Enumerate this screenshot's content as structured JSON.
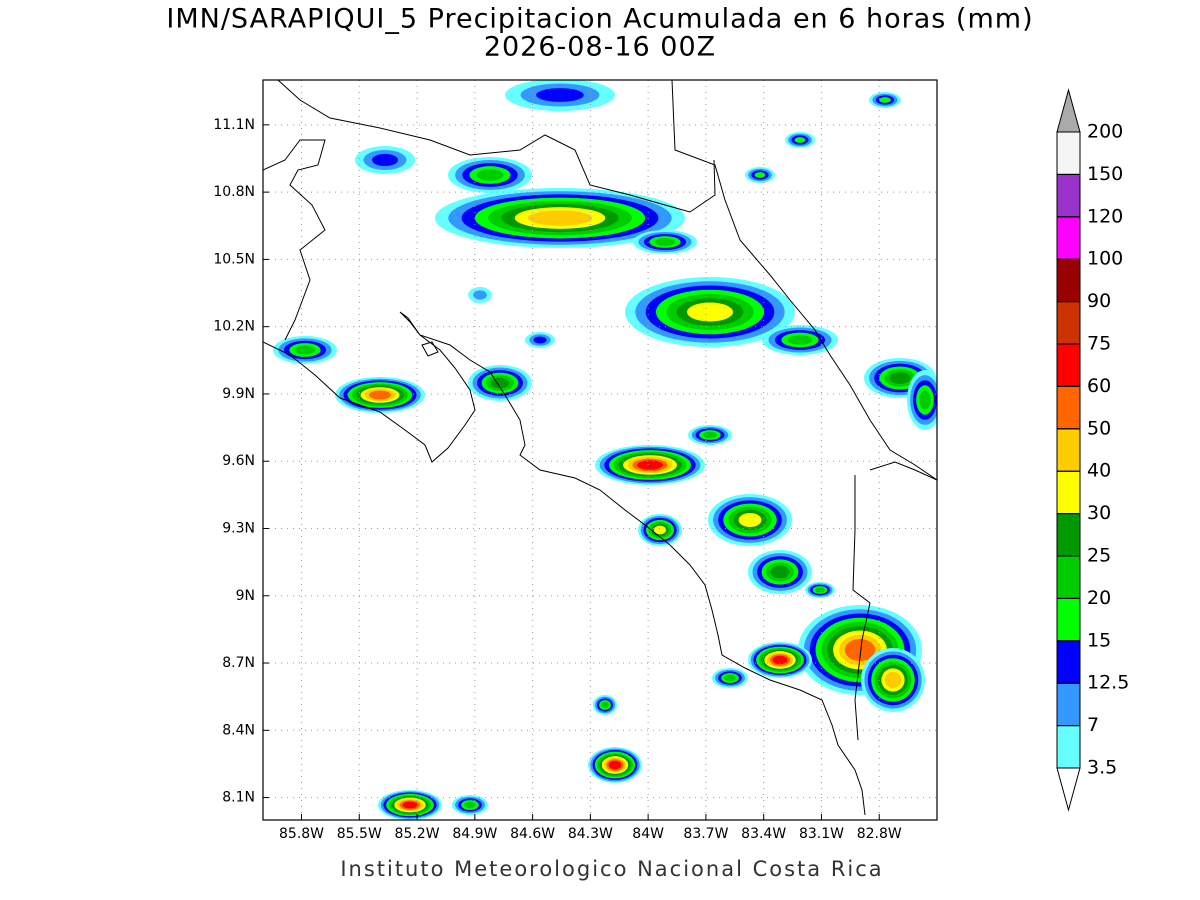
{
  "header": {
    "title": "IMN/SARAPIQUI_5 Precipitacion Acumulada en 6 horas (mm)",
    "subtitle": "2026-08-16 00Z"
  },
  "map": {
    "xlim": [
      -86.0,
      -82.5
    ],
    "ylim": [
      8.0,
      11.3
    ],
    "grid": true,
    "xticks": [
      {
        "value": -85.8,
        "label": "85.8W"
      },
      {
        "value": -85.5,
        "label": "85.5W"
      },
      {
        "value": -85.2,
        "label": "85.2W"
      },
      {
        "value": -84.9,
        "label": "84.9W"
      },
      {
        "value": -84.6,
        "label": "84.6W"
      },
      {
        "value": -84.3,
        "label": "84.3W"
      },
      {
        "value": -84.0,
        "label": "84W"
      },
      {
        "value": -83.7,
        "label": "83.7W"
      },
      {
        "value": -83.4,
        "label": "83.4W"
      },
      {
        "value": -83.1,
        "label": "83.1W"
      },
      {
        "value": -82.8,
        "label": "82.8W"
      }
    ],
    "yticks": [
      {
        "value": 8.1,
        "label": "8.1N"
      },
      {
        "value": 8.4,
        "label": "8.4N"
      },
      {
        "value": 8.7,
        "label": "8.7N"
      },
      {
        "value": 9.0,
        "label": "9N"
      },
      {
        "value": 9.3,
        "label": "9.3N"
      },
      {
        "value": 9.6,
        "label": "9.6N"
      },
      {
        "value": 9.9,
        "label": "9.9N"
      },
      {
        "value": 10.2,
        "label": "10.2N"
      },
      {
        "value": 10.5,
        "label": "10.5N"
      },
      {
        "value": 10.8,
        "label": "10.8N"
      },
      {
        "value": 11.1,
        "label": "11.1N"
      }
    ]
  },
  "colorbar": {
    "levels": [
      3.5,
      7,
      12.5,
      15,
      20,
      25,
      30,
      40,
      50,
      60,
      75,
      90,
      100,
      120,
      150,
      200
    ],
    "colors": [
      "#ffffff",
      "#66ffff",
      "#3399ff",
      "#0000ff",
      "#00ff00",
      "#00cc00",
      "#009900",
      "#ffff00",
      "#ffcc00",
      "#ff6600",
      "#ff0000",
      "#cc3300",
      "#990000",
      "#ff00ff",
      "#9933cc",
      "#f5f5f5",
      "#aaaaaa"
    ]
  },
  "footer": "Instituto Meteorologico Nacional Costa Rica"
}
